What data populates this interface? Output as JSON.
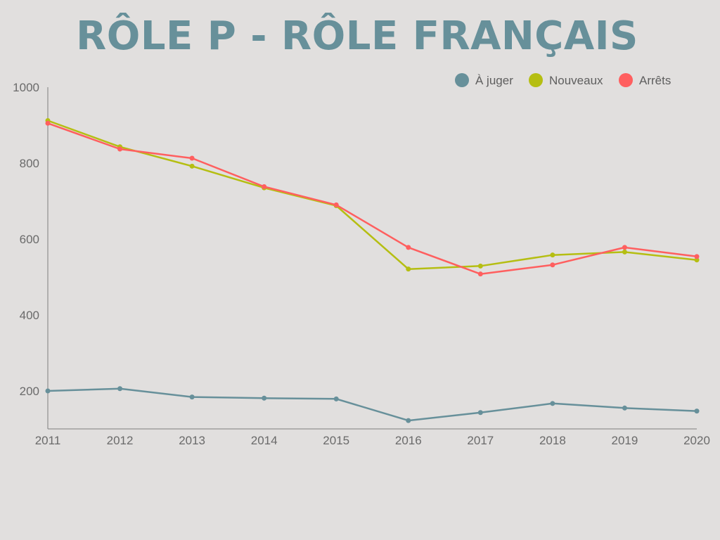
{
  "chart_data": {
    "type": "line",
    "title": "RÔLE P - RÔLE FRANÇAIS",
    "xlabel": "",
    "ylabel": "",
    "categories": [
      "2011",
      "2012",
      "2013",
      "2014",
      "2015",
      "2016",
      "2017",
      "2018",
      "2019",
      "2020"
    ],
    "ylim": [
      100,
      1000
    ],
    "yticks": [
      200,
      400,
      600,
      800,
      1000
    ],
    "grid": false,
    "legend_position": "top-right",
    "series": [
      {
        "name": "À juger",
        "color": "#67909a",
        "values": [
          200,
          206,
          184,
          181,
          179,
          122,
          143,
          167,
          155,
          147
        ]
      },
      {
        "name": "Nouveaux",
        "color": "#b5be12",
        "values": [
          912,
          843,
          792,
          735,
          688,
          521,
          529,
          558,
          566,
          545
        ]
      },
      {
        "name": "Arrêts",
        "color": "#ff5f5f",
        "values": [
          905,
          837,
          813,
          738,
          690,
          578,
          508,
          532,
          578,
          554
        ]
      }
    ]
  }
}
